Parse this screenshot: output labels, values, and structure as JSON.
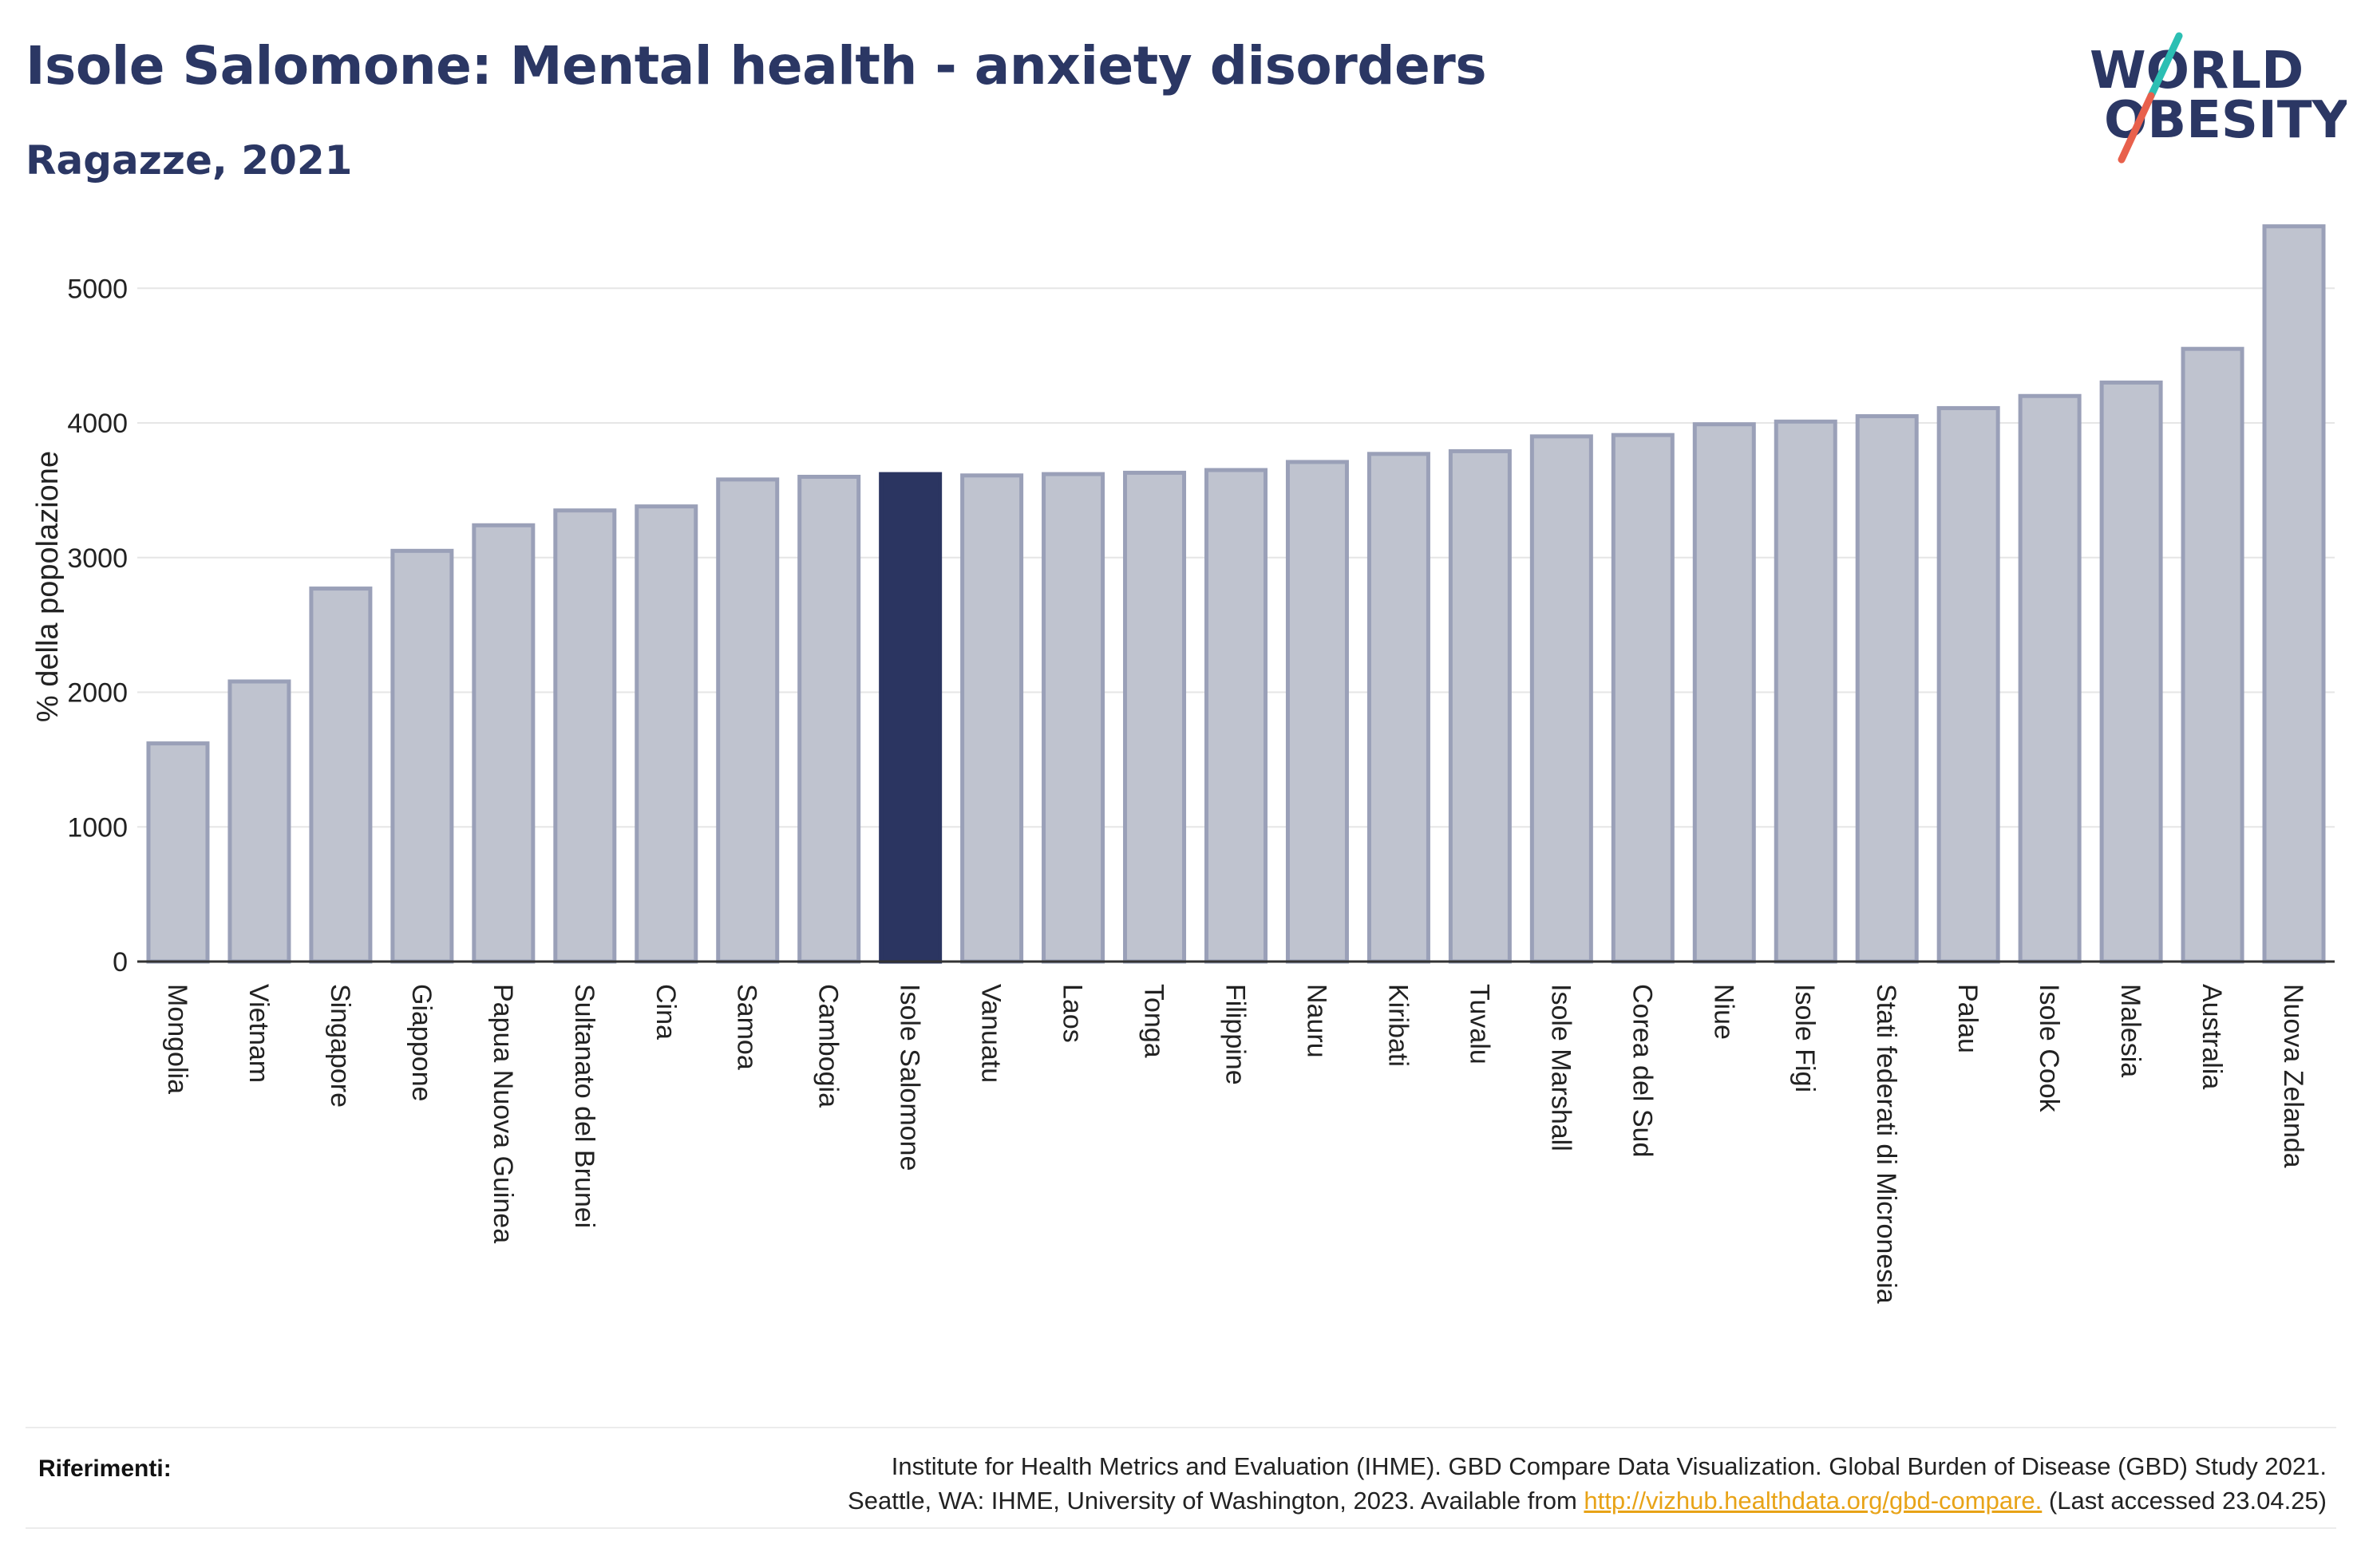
{
  "header": {
    "title": "Isole Salomone: Mental health - anxiety disorders",
    "subtitle": "Ragazze, 2021"
  },
  "logo": {
    "line1": "WORLD",
    "line2": "OBESITY",
    "colors": {
      "text": "#2b3764",
      "slash_top": "#2cbfb3",
      "slash_bottom": "#e8604c"
    }
  },
  "colors": {
    "bar": "#bfc3cf",
    "bar_border": "#9aa0b8",
    "highlight": "#2b3561",
    "grid": "#e6e6e6",
    "axis": "#333333"
  },
  "chart_data": {
    "type": "bar",
    "title": "Isole Salomone: Mental health - anxiety disorders",
    "subtitle": "Ragazze, 2021",
    "ylabel": "% della popolazione",
    "xlabel": "",
    "ylim": [
      0,
      5600
    ],
    "yticks": [
      0,
      1000,
      2000,
      3000,
      4000,
      5000
    ],
    "grid": true,
    "highlight": "Isole Salomone",
    "categories": [
      "Mongolia",
      "Vietnam",
      "Singapore",
      "Giappone",
      "Papua Nuova Guinea",
      "Sultanato del Brunei",
      "Cina",
      "Samoa",
      "Cambogia",
      "Isole Salomone",
      "Vanuatu",
      "Laos",
      "Tonga",
      "Filippine",
      "Nauru",
      "Kiribati",
      "Tuvalu",
      "Isole Marshall",
      "Corea del Sud",
      "Niue",
      "Isole Figi",
      "Stati federati di Micronesia",
      "Palau",
      "Isole Cook",
      "Malesia",
      "Australia",
      "Nuova Zelanda"
    ],
    "values": [
      1620,
      2080,
      2770,
      3050,
      3240,
      3350,
      3380,
      3580,
      3600,
      3620,
      3610,
      3620,
      3630,
      3650,
      3710,
      3770,
      3790,
      3900,
      3910,
      3990,
      4010,
      4050,
      4110,
      4200,
      4300,
      4550,
      5460
    ]
  },
  "references": {
    "label": "Riferimenti:",
    "line1": "Institute for Health Metrics and Evaluation (IHME). GBD Compare Data Visualization. Global Burden of Disease (GBD) Study 2021.",
    "line2_prefix": "Seattle, WA: IHME, University of Washington, 2023. Available from ",
    "link": "http://vizhub.healthdata.org/gbd-compare.",
    "line2_suffix": " (Last accessed 23.04.25)"
  }
}
